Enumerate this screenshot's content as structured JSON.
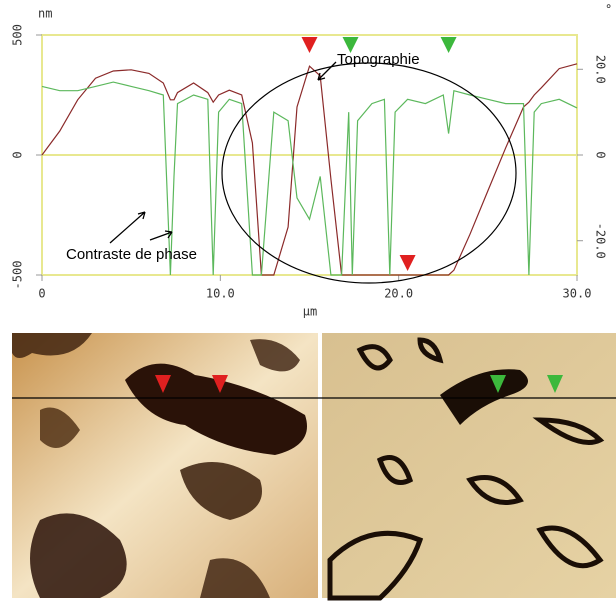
{
  "chart_data": {
    "type": "line",
    "y_unit": "nm",
    "y2_unit": "°",
    "x_label": "µm",
    "annotations": [
      "Topographie",
      "Contraste de phase"
    ],
    "x": [
      0,
      1,
      2,
      3,
      4,
      5,
      6,
      6.8,
      7.2,
      7.4,
      7.6,
      8.5,
      9.3,
      9.6,
      9.9,
      10.5,
      11.2,
      11.8,
      12.3,
      13,
      13.8,
      14.3,
      15,
      15.6,
      16.2,
      16.8,
      17.2,
      17.4,
      17.7,
      18.5,
      19.2,
      19.5,
      19.8,
      20.5,
      21.5,
      22.5,
      22.8,
      23.1,
      24,
      25,
      26,
      27,
      27.3,
      27.6,
      28,
      29,
      30
    ],
    "series": [
      {
        "name": "Topographie",
        "color": "#8b2a2a",
        "values": [
          0,
          100,
          230,
          320,
          350,
          355,
          340,
          300,
          230,
          230,
          260,
          300,
          260,
          220,
          250,
          270,
          250,
          50,
          -500,
          -500,
          -300,
          200,
          370,
          330,
          -100,
          -500,
          -500,
          -500,
          -500,
          -500,
          -500,
          -500,
          -500,
          -500,
          -500,
          -500,
          -500,
          -480,
          -330,
          -150,
          30,
          200,
          220,
          250,
          280,
          360,
          380
        ]
      },
      {
        "name": "Contraste de phase",
        "color": "#5cb85c",
        "axis": "y2",
        "values": [
          16,
          15,
          15,
          16,
          17,
          16,
          15,
          14,
          -28,
          -5,
          12,
          14,
          13,
          -28,
          10,
          13,
          12,
          -28,
          -28,
          10,
          8,
          -10,
          -15,
          -5,
          -28,
          -28,
          10,
          -28,
          8,
          12,
          13,
          -28,
          10,
          13,
          12,
          14,
          5,
          15,
          14,
          13,
          12,
          12,
          -28,
          10,
          12,
          13,
          11
        ]
      }
    ],
    "cursors": [
      {
        "x": 15,
        "color": "#e02020",
        "side": "top"
      },
      {
        "x": 20.5,
        "color": "#e02020",
        "side": "bottom"
      },
      {
        "x": 17.3,
        "color": "#3cb83c",
        "side": "top"
      },
      {
        "x": 22.8,
        "color": "#3cb83c",
        "side": "top"
      }
    ],
    "xlim": [
      0,
      30
    ],
    "xticks": [
      0,
      {
        "value": 10,
        "label": "10.0"
      },
      {
        "value": 20,
        "label": "20.0"
      },
      {
        "value": 30,
        "label": "30.0"
      }
    ],
    "ylim": [
      -500,
      500
    ],
    "yticks": [
      -500,
      0,
      500
    ],
    "y2lim": [
      -28,
      28
    ],
    "y2ticks": [
      {
        "value": -20,
        "label": "-20.0"
      },
      0,
      {
        "value": 20,
        "label": "20.0"
      }
    ],
    "grid": true
  }
}
